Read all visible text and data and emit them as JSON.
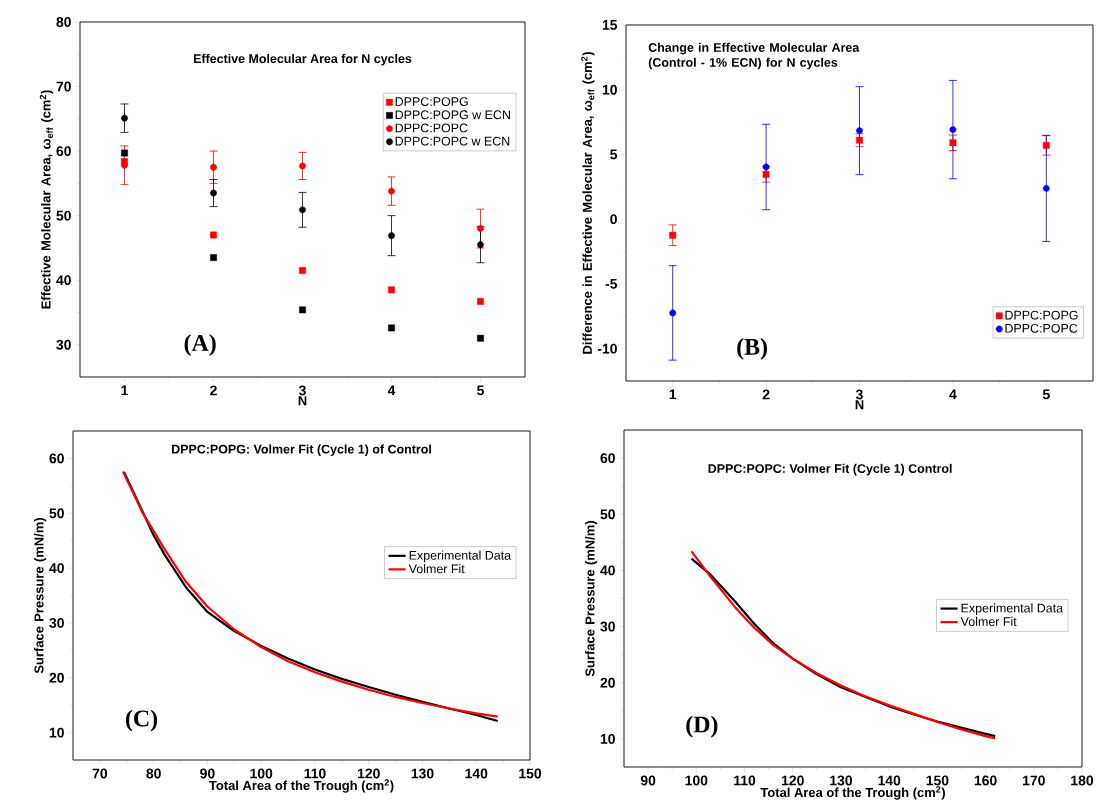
{
  "chart_data": [
    {
      "type": "scatter",
      "title": "Effective Molecular Area for N cycles",
      "xlabel": "N",
      "ylabel": "Effective Molecular Area, ω$_{eff}$ (cm$^{2}$)",
      "x": [
        1,
        2,
        3,
        4,
        5
      ],
      "xlim": [
        0.5,
        5.5
      ],
      "xticks": [
        1,
        2,
        3,
        4,
        5
      ],
      "ylim": [
        25,
        80
      ],
      "yticks": [
        30,
        40,
        50,
        60,
        70,
        80
      ],
      "legend": "top right",
      "annotations": [
        "(A)"
      ],
      "series": [
        {
          "name": "DPPC:POPG",
          "color": "#ff0000",
          "marker": "square",
          "values": [
            58.4,
            47.0,
            41.5,
            38.5,
            36.7
          ]
        },
        {
          "name": "DPPC:POPG w ECN",
          "color": "#000000",
          "marker": "square",
          "values": [
            59.7,
            43.5,
            35.4,
            32.6,
            31.0
          ]
        },
        {
          "name": "DPPC:POPC",
          "color": "#ff0000",
          "marker": "circle",
          "values": [
            57.8,
            57.5,
            57.7,
            53.8,
            48.0
          ],
          "errors": [
            3.0,
            2.5,
            2.1,
            2.2,
            3.0
          ]
        },
        {
          "name": "DPPC:POPC w ECN",
          "color": "#000000",
          "marker": "circle",
          "values": [
            65.1,
            53.5,
            50.9,
            46.9,
            45.5
          ],
          "errors": [
            2.2,
            2.1,
            2.7,
            3.1,
            2.8
          ]
        }
      ]
    },
    {
      "type": "scatter",
      "title": "Change in Effective Molecular Area (Control - 1% ECN) for N cycles",
      "xlabel": "N",
      "ylabel": "Difference in Effective Molecular Area, ω$_{eff}$ (cm$^{2}$)",
      "x": [
        1,
        2,
        3,
        4,
        5
      ],
      "xlim": [
        0.5,
        5.5
      ],
      "xticks": [
        1,
        2,
        3,
        4,
        5
      ],
      "ylim": [
        -12.5,
        15
      ],
      "yticks": [
        -10,
        -5,
        0,
        5,
        10,
        15
      ],
      "legend": "bottom right",
      "annotations": [
        "(B)"
      ],
      "series": [
        {
          "name": "DPPC:POPG",
          "color": "#ff0000",
          "marker": "square",
          "values": [
            -1.24,
            3.46,
            6.1,
            5.9,
            5.7
          ],
          "errors": [
            0.8,
            0.6,
            0.5,
            0.6,
            0.75
          ]
        },
        {
          "name": "DPPC:POPC",
          "color": "#0000ff",
          "marker": "circle",
          "values": [
            -7.24,
            4.03,
            6.84,
            6.92,
            2.38
          ],
          "errors": [
            3.65,
            3.3,
            3.4,
            3.8,
            4.1
          ]
        }
      ]
    },
    {
      "type": "line",
      "title": "DPPC:POPG: Volmer Fit (Cycle 1) of Control",
      "xlabel": "Total Area of the Trough (cm$^{2}$)",
      "ylabel": "Surface Pressure (mN/m)",
      "xlim": [
        65,
        150
      ],
      "xticks": [
        70,
        80,
        90,
        100,
        110,
        120,
        130,
        140,
        150
      ],
      "ylim": [
        5,
        65
      ],
      "yticks": [
        10,
        20,
        30,
        40,
        50,
        60
      ],
      "legend": "right",
      "annotations": [
        "(C)"
      ],
      "series": [
        {
          "name": "Experimental Data",
          "color": "#000000",
          "x": [
            74.5,
            80,
            82,
            86,
            90,
            95,
            100,
            105,
            110,
            115,
            120,
            125,
            130,
            135,
            140,
            144
          ],
          "values": [
            57.5,
            46,
            42.5,
            36.5,
            32,
            28.5,
            25.8,
            23.5,
            21.5,
            19.8,
            18.3,
            16.9,
            15.6,
            14.4,
            13.2,
            12.1
          ]
        },
        {
          "name": "Volmer Fit",
          "color": "#ff0000",
          "x": [
            74.3,
            78,
            82,
            86,
            90,
            95,
            100,
            105,
            110,
            115,
            120,
            125,
            130,
            135,
            140,
            144
          ],
          "values": [
            57.6,
            50,
            43.5,
            37.5,
            33,
            28.8,
            25.6,
            23,
            21,
            19.3,
            17.8,
            16.5,
            15.4,
            14.4,
            13.5,
            12.9
          ]
        }
      ]
    },
    {
      "type": "line",
      "title": "DPPC:POPC: Volmer Fit (Cycle 1) Control",
      "xlabel": "Total Area of the Trough (cm$^{2}$)",
      "ylabel": "Surface Pressure (mN/m)",
      "xlim": [
        85,
        180
      ],
      "xticks": [
        90,
        100,
        110,
        120,
        130,
        140,
        150,
        160,
        170,
        180
      ],
      "ylim": [
        5,
        65
      ],
      "yticks": [
        10,
        20,
        30,
        40,
        50,
        60
      ],
      "legend": "right",
      "annotations": [
        "(D)"
      ],
      "series": [
        {
          "name": "Experimental Data",
          "color": "#000000",
          "x": [
            99,
            103,
            108,
            112,
            116,
            120,
            125,
            130,
            135,
            140,
            145,
            150,
            155,
            160,
            162
          ],
          "values": [
            42.1,
            39.2,
            34.5,
            30.5,
            27,
            24.3,
            21.5,
            19.2,
            17.5,
            15.8,
            14.4,
            13.1,
            12,
            10.9,
            10.5
          ]
        },
        {
          "name": "Volmer Fit",
          "color": "#ff0000",
          "x": [
            99,
            103,
            108,
            112,
            116,
            120,
            125,
            130,
            135,
            140,
            145,
            150,
            155,
            160,
            162
          ],
          "values": [
            43.4,
            38.8,
            33.5,
            29.8,
            26.7,
            24.3,
            21.7,
            19.5,
            17.6,
            16,
            14.5,
            13,
            11.7,
            10.5,
            10.1
          ]
        }
      ]
    }
  ]
}
